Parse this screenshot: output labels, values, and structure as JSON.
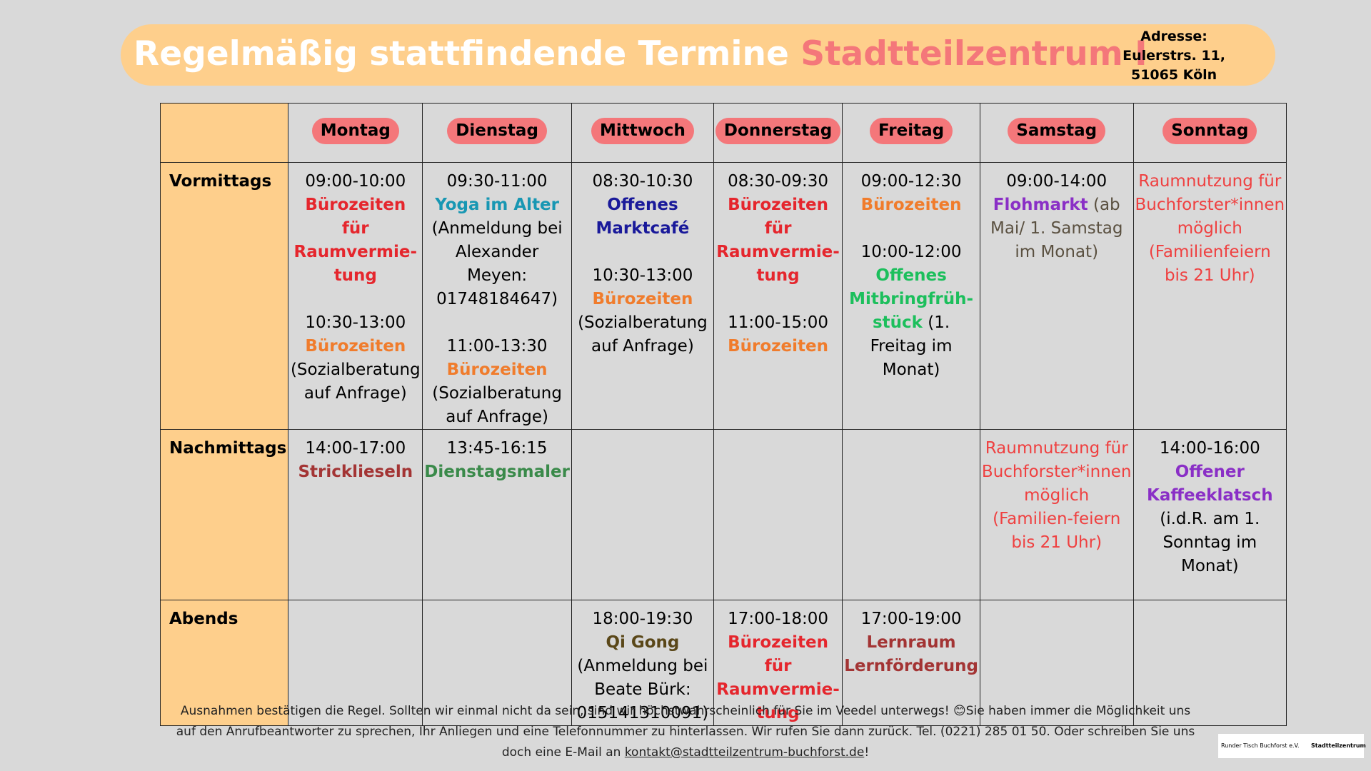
{
  "header": {
    "title": "Regelmäßig stattfindende Termine",
    "title_highlight": "Stadtteilzentrum I",
    "address": [
      "Adresse:",
      "Eulerstrs. 11,",
      "51065 Köln"
    ]
  },
  "table": {
    "days": [
      "Montag",
      "Dienstag",
      "Mittwoch",
      "Donnerstag",
      "Freitag",
      "Samstag",
      "Sonntag"
    ],
    "periods": [
      "Vormittags",
      "Nachmittags",
      "Abends"
    ],
    "cells": [
      [
        [
          {
            "time": "09:00-10:00",
            "title": "Bürozeiten für Raumvermie­tung",
            "color": "#e5262d"
          },
          {
            "time": "10:30-13:00",
            "title": "Bürozeiten",
            "color": "#f07c2c",
            "note": "(Sozialberatung auf Anfrage)"
          }
        ],
        [
          {
            "time": "09:30-11:00",
            "title": "Yoga im Alter",
            "color": "#1897b3",
            "note": "(Anmeldung bei Alexander Meyen: 01748184647)"
          },
          {
            "time": "11:00-13:30",
            "title": "Bürozeiten",
            "color": "#f07c2c",
            "note": "(Sozialberatung auf Anfrage)"
          }
        ],
        [
          {
            "time": "08:30-10:30",
            "title": "Offenes Marktcafé",
            "color": "#19199a"
          },
          {
            "time": "10:30-13:00",
            "title": "Bürozeiten",
            "color": "#f07c2c",
            "note": "(Sozialberatung auf Anfrage)"
          }
        ],
        [
          {
            "time": "08:30-09:30",
            "title": "Bürozeiten für Raumvermie­tung",
            "color": "#e5262d"
          },
          {
            "time": "11:00-15:00",
            "title": "Bürozeiten",
            "color": "#f07c2c"
          }
        ],
        [
          {
            "time": "09:00-12:30",
            "title": "Bürozeiten",
            "color": "#f07c2c"
          },
          {
            "time": "10:00-12:00",
            "title": "Offenes Mitbringfrüh­stück",
            "color": "#1cbf5c",
            "note": "(1. Freitag im Monat)"
          }
        ],
        [
          {
            "time": "09:00-14:00",
            "title": "Flohmarkt",
            "color": "#8a2fc6",
            "note": "(ab Mai/ 1. Samstag im Monat)",
            "note_color": "#5a5040"
          }
        ],
        [
          {
            "note": "Raumnutzung für Buchforster*innen möglich (Familienfeiern bis 21 Uhr)",
            "note_color": "#ef4040"
          }
        ]
      ],
      [
        [
          {
            "time": "14:00-17:00",
            "title": "Stricklieseln",
            "color": "#a33434"
          }
        ],
        [
          {
            "time": "13:45-16:15",
            "title": "Dienstagsmaler",
            "color": "#3a8a4a"
          }
        ],
        [],
        [],
        [],
        [
          {
            "note": "Raumnutzung für Buchforster*innen möglich (Familien-feiern bis 21 Uhr)",
            "note_color": "#ef4040"
          }
        ],
        [
          {
            "time": "14:00-16:00",
            "title": "Offener Kaffeeklatsch",
            "color": "#8a2fc6",
            "note": "(i.d.R. am 1. Sonntag im Monat)"
          }
        ]
      ],
      [
        [],
        [],
        [
          {
            "time": "18:00-19:30",
            "title": "Qi Gong",
            "color": "#5a4718",
            "note": "(Anmeldung bei Beate Bürk: 015141310091)"
          }
        ],
        [
          {
            "time": "17:00-18:00",
            "title": "Bürozeiten für Raumvermie­tung",
            "color": "#e5262d"
          }
        ],
        [
          {
            "time": "17:00-19:00",
            "title": "Lernraum Lernförderung",
            "color": "#a33434"
          }
        ],
        [],
        []
      ]
    ]
  },
  "footer": {
    "text": "Ausnahmen bestätigen die Regel. Sollten wir einmal nicht da sein, sind wir höchstwahrscheinlich für Sie im Veedel unterwegs! 😊Sie haben immer die Möglichkeit uns auf den Anrufbeantworter zu sprechen, Ihr Anliegen und eine Telefonnummer zu hinterlassen. Wir rufen Sie dann zurück. Tel. (0221) 285 01 50. Oder schreiben Sie uns doch eine E-Mail an",
    "email": "kontakt@stadtteilzentrum-buchforst.de",
    "end": "!"
  },
  "logos": [
    "Runder Tisch Buchforst e.V.",
    "Stadtteilzentrum"
  ]
}
